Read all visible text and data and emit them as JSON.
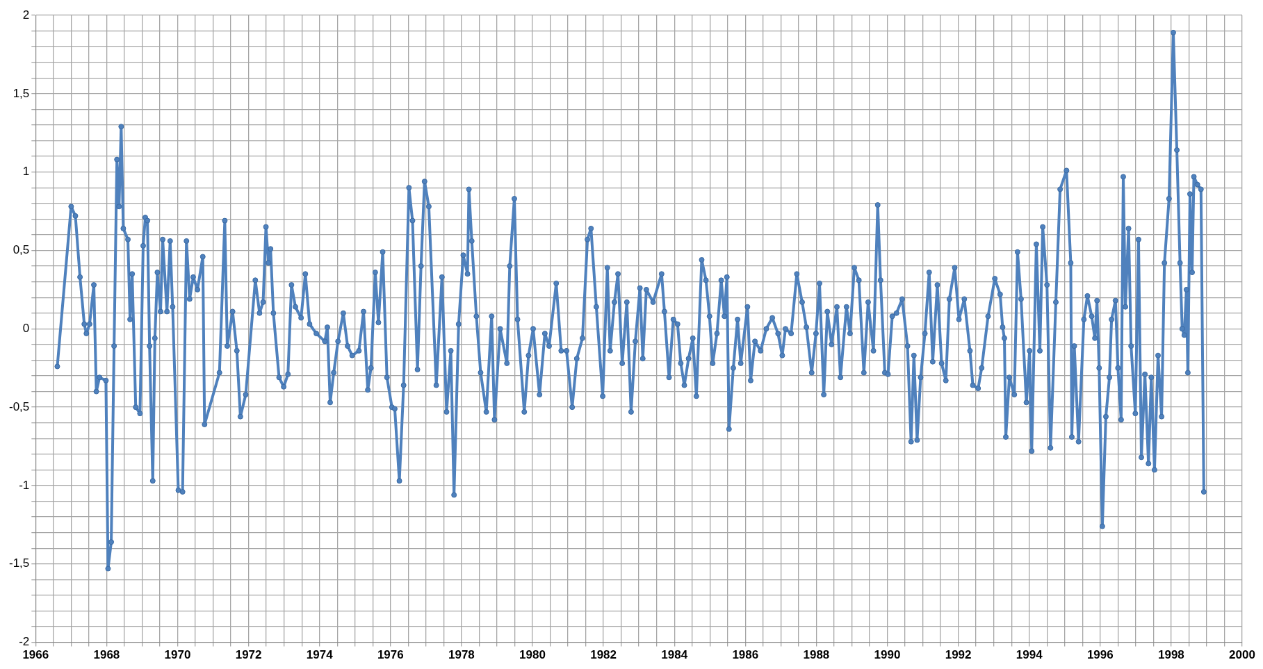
{
  "chart_data": {
    "type": "line",
    "grid": true,
    "marker": "circle",
    "line_style": "solid",
    "legend": false,
    "xlim": [
      1966,
      2000
    ],
    "xticks": [
      1966,
      {
        "value": 1966.5,
        "label": null
      },
      {
        "value": 1967,
        "label": null
      },
      {
        "value": 1967.5,
        "label": null
      },
      1968,
      {
        "value": 1968.5,
        "label": null
      },
      {
        "value": 1969,
        "label": null
      },
      {
        "value": 1969.5,
        "label": null
      },
      1970,
      {
        "value": 1970.5,
        "label": null
      },
      {
        "value": 1971,
        "label": null
      },
      {
        "value": 1971.5,
        "label": null
      },
      1972,
      {
        "value": 1972.5,
        "label": null
      },
      {
        "value": 1973,
        "label": null
      },
      {
        "value": 1973.5,
        "label": null
      },
      1974,
      {
        "value": 1974.5,
        "label": null
      },
      {
        "value": 1975,
        "label": null
      },
      {
        "value": 1975.5,
        "label": null
      },
      1976,
      {
        "value": 1976.5,
        "label": null
      },
      {
        "value": 1977,
        "label": null
      },
      {
        "value": 1977.5,
        "label": null
      },
      1978,
      {
        "value": 1978.5,
        "label": null
      },
      {
        "value": 1979,
        "label": null
      },
      {
        "value": 1979.5,
        "label": null
      },
      1980,
      {
        "value": 1980.5,
        "label": null
      },
      {
        "value": 1981,
        "label": null
      },
      {
        "value": 1981.5,
        "label": null
      },
      1982,
      {
        "value": 1982.5,
        "label": null
      },
      {
        "value": 1983,
        "label": null
      },
      {
        "value": 1983.5,
        "label": null
      },
      1984,
      {
        "value": 1984.5,
        "label": null
      },
      {
        "value": 1985,
        "label": null
      },
      {
        "value": 1985.5,
        "label": null
      },
      1986,
      {
        "value": 1986.5,
        "label": null
      },
      {
        "value": 1987,
        "label": null
      },
      {
        "value": 1987.5,
        "label": null
      },
      1988,
      {
        "value": 1988.5,
        "label": null
      },
      {
        "value": 1989,
        "label": null
      },
      {
        "value": 1989.5,
        "label": null
      },
      1990,
      {
        "value": 1990.5,
        "label": null
      },
      {
        "value": 1991,
        "label": null
      },
      {
        "value": 1991.5,
        "label": null
      },
      1992,
      {
        "value": 1992.5,
        "label": null
      },
      {
        "value": 1993,
        "label": null
      },
      {
        "value": 1993.5,
        "label": null
      },
      1994,
      {
        "value": 1994.5,
        "label": null
      },
      {
        "value": 1995,
        "label": null
      },
      {
        "value": 1995.5,
        "label": null
      },
      1996,
      {
        "value": 1996.5,
        "label": null
      },
      {
        "value": 1997,
        "label": null
      },
      {
        "value": 1997.5,
        "label": null
      },
      1998,
      {
        "value": 1998.5,
        "label": null
      },
      {
        "value": 1999,
        "label": null
      },
      {
        "value": 1999.5,
        "label": null
      },
      2000
    ],
    "ylim": [
      -2,
      2
    ],
    "yticks": [
      -2,
      {
        "value": -1.9,
        "label": null
      },
      {
        "value": -1.8,
        "label": null
      },
      {
        "value": -1.7,
        "label": null
      },
      {
        "value": -1.6,
        "label": null
      },
      {
        "value": -1.5,
        "label": "-1,5"
      },
      {
        "value": -1.4,
        "label": null
      },
      {
        "value": -1.3,
        "label": null
      },
      {
        "value": -1.2,
        "label": null
      },
      {
        "value": -1.1,
        "label": null
      },
      -1,
      {
        "value": -0.9,
        "label": null
      },
      {
        "value": -0.8,
        "label": null
      },
      {
        "value": -0.7,
        "label": null
      },
      {
        "value": -0.6,
        "label": null
      },
      {
        "value": -0.5,
        "label": "-0,5"
      },
      {
        "value": -0.4,
        "label": null
      },
      {
        "value": -0.3,
        "label": null
      },
      {
        "value": -0.2,
        "label": null
      },
      {
        "value": -0.1,
        "label": null
      },
      0,
      {
        "value": 0.1,
        "label": null
      },
      {
        "value": 0.2,
        "label": null
      },
      {
        "value": 0.3,
        "label": null
      },
      {
        "value": 0.4,
        "label": null
      },
      {
        "value": 0.5,
        "label": "0,5"
      },
      {
        "value": 0.6,
        "label": null
      },
      {
        "value": 0.7,
        "label": null
      },
      {
        "value": 0.8,
        "label": null
      },
      {
        "value": 0.9,
        "label": null
      },
      1,
      {
        "value": 1.1,
        "label": null
      },
      {
        "value": 1.2,
        "label": null
      },
      {
        "value": 1.3,
        "label": null
      },
      {
        "value": 1.4,
        "label": null
      },
      {
        "value": 1.5,
        "label": "1,5"
      },
      {
        "value": 1.6,
        "label": null
      },
      {
        "value": 1.7,
        "label": null
      },
      {
        "value": 1.8,
        "label": null
      },
      {
        "value": 1.9,
        "label": null
      },
      2
    ],
    "x": [
      1966.61,
      1967.0,
      1967.12,
      1967.25,
      1967.37,
      1967.43,
      1967.52,
      1967.64,
      1967.71,
      1967.8,
      1967.98,
      1968.04,
      1968.13,
      1968.21,
      1968.29,
      1968.35,
      1968.41,
      1968.47,
      1968.6,
      1968.66,
      1968.72,
      1968.82,
      1968.94,
      1969.03,
      1969.09,
      1969.15,
      1969.21,
      1969.3,
      1969.36,
      1969.43,
      1969.52,
      1969.58,
      1969.7,
      1969.79,
      1969.86,
      1970.02,
      1970.14,
      1970.25,
      1970.34,
      1970.44,
      1970.56,
      1970.71,
      1970.76,
      1971.18,
      1971.33,
      1971.4,
      1971.55,
      1971.67,
      1971.77,
      1971.92,
      1972.19,
      1972.31,
      1972.41,
      1972.49,
      1972.56,
      1972.62,
      1972.7,
      1972.86,
      1972.99,
      1973.11,
      1973.21,
      1973.32,
      1973.48,
      1973.6,
      1973.72,
      1973.91,
      1974.15,
      1974.22,
      1974.3,
      1974.4,
      1974.52,
      1974.67,
      1974.79,
      1974.92,
      1975.11,
      1975.24,
      1975.36,
      1975.45,
      1975.57,
      1975.66,
      1975.78,
      1975.9,
      1976.04,
      1976.12,
      1976.25,
      1976.37,
      1976.52,
      1976.62,
      1976.76,
      1976.86,
      1976.96,
      1977.08,
      1977.29,
      1977.45,
      1977.58,
      1977.7,
      1977.79,
      1977.92,
      1978.05,
      1978.17,
      1978.21,
      1978.29,
      1978.42,
      1978.54,
      1978.7,
      1978.85,
      1978.93,
      1979.09,
      1979.28,
      1979.36,
      1979.49,
      1979.58,
      1979.77,
      1979.89,
      1980.02,
      1980.2,
      1980.35,
      1980.47,
      1980.67,
      1980.81,
      1980.96,
      1981.12,
      1981.25,
      1981.41,
      1981.55,
      1981.65,
      1981.8,
      1981.98,
      1982.11,
      1982.19,
      1982.31,
      1982.41,
      1982.53,
      1982.66,
      1982.78,
      1982.9,
      1983.03,
      1983.11,
      1983.21,
      1983.4,
      1983.64,
      1983.72,
      1983.85,
      1983.97,
      1984.09,
      1984.18,
      1984.28,
      1984.4,
      1984.52,
      1984.62,
      1984.77,
      1984.89,
      1984.99,
      1985.08,
      1985.2,
      1985.32,
      1985.41,
      1985.48,
      1985.54,
      1985.66,
      1985.78,
      1985.87,
      1986.06,
      1986.15,
      1986.27,
      1986.43,
      1986.59,
      1986.76,
      1986.92,
      1987.04,
      1987.13,
      1987.29,
      1987.45,
      1987.6,
      1987.72,
      1987.87,
      1987.99,
      1988.09,
      1988.21,
      1988.31,
      1988.43,
      1988.58,
      1988.68,
      1988.85,
      1988.95,
      1989.07,
      1989.2,
      1989.34,
      1989.46,
      1989.61,
      1989.73,
      1989.81,
      1989.93,
      1990.02,
      1990.14,
      1990.26,
      1990.42,
      1990.57,
      1990.67,
      1990.75,
      1990.84,
      1990.94,
      1991.06,
      1991.18,
      1991.28,
      1991.41,
      1991.53,
      1991.65,
      1991.75,
      1991.9,
      1992.02,
      1992.17,
      1992.33,
      1992.41,
      1992.56,
      1992.66,
      1992.84,
      1993.03,
      1993.18,
      1993.25,
      1993.3,
      1993.34,
      1993.44,
      1993.58,
      1993.67,
      1993.77,
      1993.92,
      1994.01,
      1994.07,
      1994.2,
      1994.3,
      1994.38,
      1994.5,
      1994.6,
      1994.75,
      1994.87,
      1995.05,
      1995.17,
      1995.2,
      1995.27,
      1995.39,
      1995.54,
      1995.64,
      1995.76,
      1995.85,
      1995.91,
      1995.97,
      1996.06,
      1996.16,
      1996.26,
      1996.32,
      1996.43,
      1996.5,
      1996.59,
      1996.65,
      1996.71,
      1996.8,
      1996.87,
      1996.99,
      1997.08,
      1997.16,
      1997.26,
      1997.36,
      1997.44,
      1997.53,
      1997.63,
      1997.73,
      1997.81,
      1997.94,
      1998.06,
      1998.16,
      1998.25,
      1998.31,
      1998.37,
      1998.43,
      1998.47,
      1998.53,
      1998.59,
      1998.64,
      1998.74,
      1998.84,
      1998.92
    ],
    "series": [
      {
        "color": "#4f81bd",
        "values": [
          -0.24,
          0.78,
          0.72,
          0.33,
          0.03,
          -0.03,
          0.03,
          0.28,
          -0.4,
          -0.31,
          -0.33,
          -1.53,
          -1.36,
          -0.11,
          1.08,
          0.78,
          1.29,
          0.64,
          0.57,
          0.06,
          0.35,
          -0.5,
          -0.54,
          0.53,
          0.71,
          0.69,
          -0.11,
          -0.97,
          -0.06,
          0.36,
          0.11,
          0.57,
          0.11,
          0.56,
          0.14,
          -1.03,
          -1.04,
          0.56,
          0.19,
          0.33,
          0.25,
          0.46,
          -0.61,
          -0.28,
          0.69,
          -0.11,
          0.11,
          -0.14,
          -0.56,
          -0.42,
          0.31,
          0.1,
          0.17,
          0.65,
          0.42,
          0.51,
          0.1,
          -0.31,
          -0.37,
          -0.29,
          0.28,
          0.14,
          0.07,
          0.35,
          0.03,
          -0.03,
          -0.08,
          0.01,
          -0.47,
          -0.28,
          -0.08,
          0.1,
          -0.11,
          -0.17,
          -0.14,
          0.11,
          -0.39,
          -0.25,
          0.36,
          0.04,
          0.49,
          -0.31,
          -0.5,
          -0.51,
          -0.97,
          -0.36,
          0.9,
          0.69,
          -0.26,
          0.4,
          0.94,
          0.78,
          -0.36,
          0.33,
          -0.53,
          -0.14,
          -1.06,
          0.03,
          0.47,
          0.35,
          0.89,
          0.56,
          0.08,
          -0.28,
          -0.53,
          0.08,
          -0.58,
          0,
          -0.22,
          0.4,
          0.83,
          0.06,
          -0.53,
          -0.17,
          0,
          -0.42,
          -0.03,
          -0.11,
          0.29,
          -0.14,
          -0.14,
          -0.5,
          -0.19,
          -0.06,
          0.57,
          0.64,
          0.14,
          -0.43,
          0.39,
          -0.14,
          0.17,
          0.35,
          -0.22,
          0.17,
          -0.53,
          -0.08,
          0.26,
          -0.19,
          0.25,
          0.17,
          0.35,
          0.11,
          -0.31,
          0.06,
          0.03,
          -0.22,
          -0.36,
          -0.19,
          -0.06,
          -0.43,
          0.44,
          0.31,
          0.08,
          -0.22,
          -0.03,
          0.31,
          0.08,
          0.33,
          -0.64,
          -0.25,
          0.06,
          -0.22,
          0.14,
          -0.33,
          -0.08,
          -0.14,
          0,
          0.07,
          -0.03,
          -0.17,
          0,
          -0.03,
          0.35,
          0.17,
          0.01,
          -0.28,
          -0.03,
          0.29,
          -0.42,
          0.11,
          -0.1,
          0.14,
          -0.31,
          0.14,
          -0.03,
          0.39,
          0.31,
          -0.28,
          0.17,
          -0.14,
          0.79,
          0.31,
          -0.28,
          -0.29,
          0.08,
          0.1,
          0.19,
          -0.11,
          -0.72,
          -0.17,
          -0.71,
          -0.31,
          -0.03,
          0.36,
          -0.21,
          0.28,
          -0.22,
          -0.33,
          0.19,
          0.39,
          0.06,
          0.19,
          -0.14,
          -0.36,
          -0.38,
          -0.25,
          0.08,
          0.32,
          0.22,
          0.01,
          -0.06,
          -0.69,
          -0.31,
          -0.42,
          0.49,
          0.19,
          -0.47,
          -0.14,
          -0.78,
          0.54,
          -0.14,
          0.65,
          0.28,
          -0.76,
          0.17,
          0.89,
          1.01,
          0.42,
          -0.69,
          -0.11,
          -0.72,
          0.06,
          0.21,
          0.08,
          -0.06,
          0.18,
          -0.25,
          -1.26,
          -0.56,
          -0.31,
          0.06,
          0.18,
          -0.25,
          -0.58,
          0.97,
          0.14,
          0.64,
          -0.11,
          -0.54,
          0.57,
          -0.82,
          -0.29,
          -0.86,
          -0.31,
          -0.9,
          -0.17,
          -0.56,
          0.42,
          0.83,
          1.89,
          1.14,
          0.42,
          0,
          -0.04,
          0.25,
          -0.28,
          0.86,
          0.36,
          0.97,
          0.92,
          0.89,
          -1.04
        ]
      }
    ]
  }
}
